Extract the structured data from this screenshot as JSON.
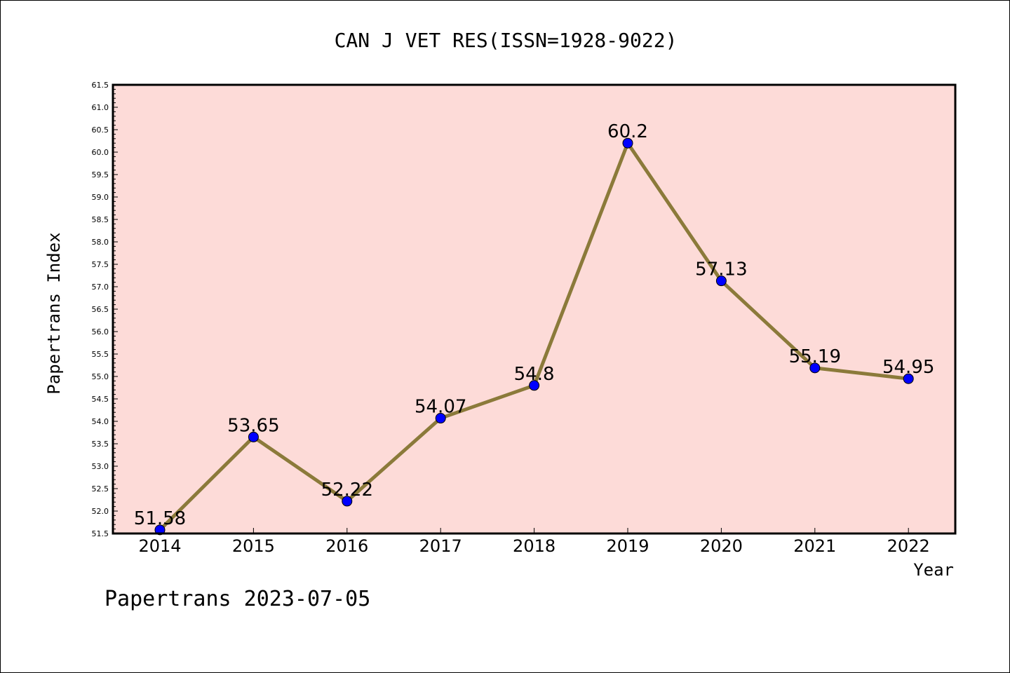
{
  "chart_data": {
    "type": "line",
    "title": "CAN J VET RES(ISSN=1928-9022)",
    "xlabel": "Year",
    "ylabel": "Papertrans Index",
    "categories": [
      "2014",
      "2015",
      "2016",
      "2017",
      "2018",
      "2019",
      "2020",
      "2021",
      "2022"
    ],
    "series": [
      {
        "values": [
          51.58,
          53.65,
          52.22,
          54.07,
          54.8,
          60.2,
          57.13,
          55.19,
          54.95
        ],
        "labels": [
          "51.58",
          "53.65",
          "52.22",
          "54.07",
          "54.8",
          "60.2",
          "57.13",
          "55.19",
          "54.95"
        ]
      }
    ],
    "ylim": [
      51.5,
      61.5
    ],
    "yticks": [
      "51.5",
      "52.0",
      "52.5",
      "53.0",
      "53.5",
      "54.0",
      "54.5",
      "55.0",
      "55.5",
      "56.0",
      "56.5",
      "57.0",
      "57.5",
      "58.0",
      "58.5",
      "59.0",
      "59.5",
      "60.0",
      "60.5",
      "61.0",
      "61.5"
    ],
    "grid": false,
    "colors": {
      "plot_background": "#fddbd8",
      "line": "#8b7a3a",
      "marker": "#0000ff"
    }
  },
  "footer": {
    "text": "Papertrans 2023-07-05"
  }
}
